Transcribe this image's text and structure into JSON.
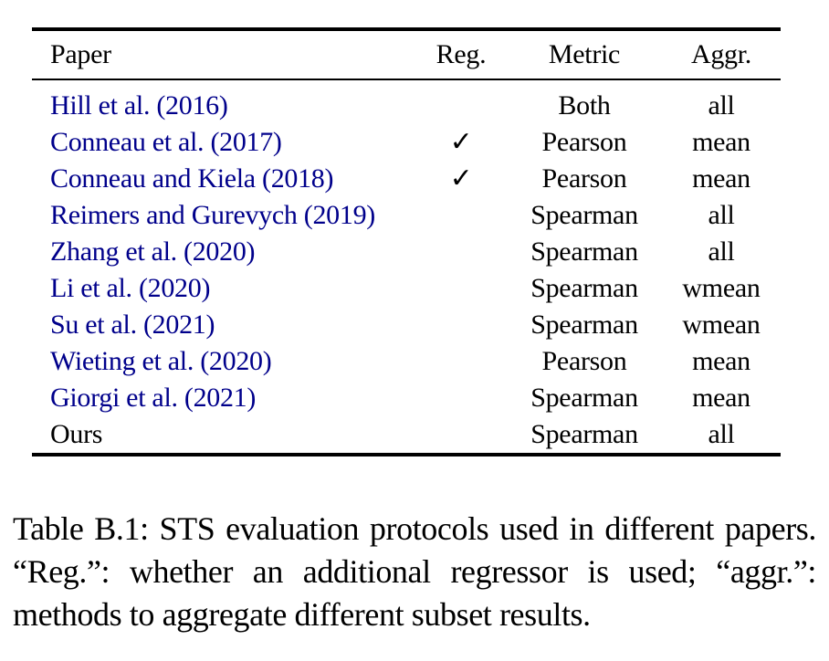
{
  "table": {
    "columns": [
      "Paper",
      "Reg.",
      "Metric",
      "Aggr."
    ],
    "checkmark_glyph": "✓",
    "rows": [
      {
        "paper": "Hill et al. (2016)",
        "reg": false,
        "metric": "Both",
        "aggr": "all",
        "is_citation_link": true
      },
      {
        "paper": "Conneau et al. (2017)",
        "reg": true,
        "metric": "Pearson",
        "aggr": "mean",
        "is_citation_link": true
      },
      {
        "paper": "Conneau and Kiela (2018)",
        "reg": true,
        "metric": "Pearson",
        "aggr": "mean",
        "is_citation_link": true
      },
      {
        "paper": "Reimers and Gurevych (2019)",
        "reg": false,
        "metric": "Spearman",
        "aggr": "all",
        "is_citation_link": true
      },
      {
        "paper": "Zhang et al. (2020)",
        "reg": false,
        "metric": "Spearman",
        "aggr": "all",
        "is_citation_link": true
      },
      {
        "paper": "Li et al. (2020)",
        "reg": false,
        "metric": "Spearman",
        "aggr": "wmean",
        "is_citation_link": true
      },
      {
        "paper": "Su et al. (2021)",
        "reg": false,
        "metric": "Spearman",
        "aggr": "wmean",
        "is_citation_link": true
      },
      {
        "paper": "Wieting et al. (2020)",
        "reg": false,
        "metric": "Pearson",
        "aggr": "mean",
        "is_citation_link": true
      },
      {
        "paper": "Giorgi et al. (2021)",
        "reg": false,
        "metric": "Spearman",
        "aggr": "mean",
        "is_citation_link": true
      },
      {
        "paper": "Ours",
        "reg": false,
        "metric": "Spearman",
        "aggr": "all",
        "is_citation_link": false
      }
    ]
  },
  "caption": "Table B.1: STS evaluation protocols used in different papers. “Reg.”: whether an additional regressor is used; “aggr.”: methods to aggregate different subset results.",
  "colors": {
    "citation_blue": "#00008B",
    "text_black": "#000000",
    "background": "#ffffff"
  }
}
